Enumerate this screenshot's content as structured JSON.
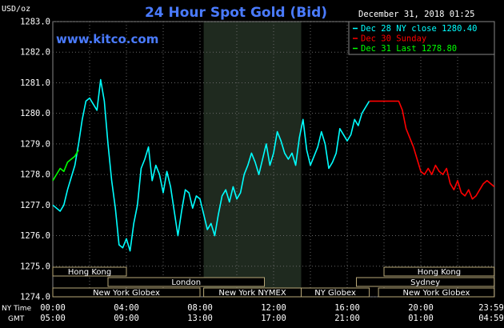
{
  "header": {
    "title": "24 Hour Spot Gold (Bid)",
    "unit": "USD/oz",
    "timestamp": "December 31, 2018 01:25",
    "website": "www.kitco.com"
  },
  "legend": [
    {
      "text": "Dec 28 NY close 1280.40",
      "color": "#00ffff"
    },
    {
      "text": "Dec 30 Sunday",
      "color": "#ff0000"
    },
    {
      "text": "Dec 31 Last 1278.80",
      "color": "#00ff00"
    }
  ],
  "axis_labels": {
    "ny_time": "NY Time",
    "gmt": "GMT"
  },
  "sessions": [
    {
      "label": "Hong Kong",
      "row": 0,
      "start": 0.0,
      "end": 4.0
    },
    {
      "label": "Hong Kong",
      "row": 0,
      "start": 18.0,
      "end": 23.99
    },
    {
      "label": "London",
      "row": 1,
      "start": 3.0,
      "end": 11.5
    },
    {
      "label": "Sydney",
      "row": 1,
      "start": 16.5,
      "end": 23.99
    },
    {
      "label": "New York Globex",
      "row": 2,
      "start": 0.0,
      "end": 8.0
    },
    {
      "label": "New York NYMEX",
      "row": 2,
      "start": 8.2,
      "end": 13.5
    },
    {
      "label": "NY Globex",
      "row": 2,
      "start": 13.5,
      "end": 17.2
    },
    {
      "label": "New York Globex",
      "row": 2,
      "start": 17.7,
      "end": 23.99
    }
  ],
  "chart_data": {
    "type": "line",
    "title": "24 Hour Spot Gold (Bid)",
    "ylabel": "USD/oz",
    "xlim": [
      0,
      24
    ],
    "ylim": [
      1274.0,
      1283.0
    ],
    "y_ticks": [
      "1274.0",
      "1275.0",
      "1276.0",
      "1277.0",
      "1278.0",
      "1279.0",
      "1280.0",
      "1281.0",
      "1282.0",
      "1283.0"
    ],
    "x_ticks_ny": [
      "00:00",
      "04:00",
      "08:00",
      "12:00",
      "16:00",
      "20:00",
      "23:59"
    ],
    "x_ticks_gmt": [
      "05:00",
      "09:00",
      "13:00",
      "17:00",
      "21:00",
      "01:00",
      "04:59"
    ],
    "x_tick_hours": [
      0,
      4,
      8,
      12,
      16,
      20,
      23.99
    ],
    "highlight_band": [
      8.2,
      13.5
    ],
    "grid": true,
    "series": [
      {
        "name": "Dec 28 NY close 1280.40",
        "color": "#00ffff",
        "x": [
          0.0,
          0.2,
          0.4,
          0.6,
          0.8,
          1.0,
          1.2,
          1.4,
          1.6,
          1.8,
          2.0,
          2.2,
          2.4,
          2.6,
          2.8,
          3.0,
          3.2,
          3.4,
          3.6,
          3.8,
          4.0,
          4.2,
          4.4,
          4.6,
          4.8,
          5.0,
          5.2,
          5.4,
          5.6,
          5.8,
          6.0,
          6.2,
          6.4,
          6.6,
          6.8,
          7.0,
          7.2,
          7.4,
          7.6,
          7.8,
          8.0,
          8.2,
          8.4,
          8.6,
          8.8,
          9.0,
          9.2,
          9.4,
          9.6,
          9.8,
          10.0,
          10.2,
          10.4,
          10.6,
          10.8,
          11.0,
          11.2,
          11.4,
          11.6,
          11.8,
          12.0,
          12.2,
          12.4,
          12.6,
          12.8,
          13.0,
          13.2,
          13.4,
          13.6,
          13.8,
          14.0,
          14.2,
          14.4,
          14.6,
          14.8,
          15.0,
          15.2,
          15.4,
          15.6,
          15.8,
          16.0,
          16.2,
          16.4,
          16.6,
          16.8,
          17.0,
          17.2
        ],
        "values": [
          1277.0,
          1276.9,
          1276.8,
          1277.0,
          1277.5,
          1277.9,
          1278.3,
          1279.0,
          1279.8,
          1280.4,
          1280.5,
          1280.3,
          1280.1,
          1281.1,
          1280.4,
          1279.0,
          1277.8,
          1276.9,
          1275.7,
          1275.6,
          1275.9,
          1275.5,
          1276.4,
          1277.0,
          1278.2,
          1278.5,
          1278.9,
          1277.8,
          1278.3,
          1278.0,
          1277.4,
          1278.1,
          1277.6,
          1276.8,
          1276.0,
          1276.8,
          1277.5,
          1277.4,
          1276.9,
          1277.3,
          1277.2,
          1276.7,
          1276.2,
          1276.4,
          1276.0,
          1276.7,
          1277.3,
          1277.5,
          1277.1,
          1277.6,
          1277.2,
          1277.4,
          1278.0,
          1278.3,
          1278.7,
          1278.4,
          1278.0,
          1278.5,
          1279.0,
          1278.3,
          1278.7,
          1279.4,
          1279.1,
          1278.7,
          1278.5,
          1278.7,
          1278.3,
          1279.2,
          1279.8,
          1278.8,
          1278.3,
          1278.6,
          1278.9,
          1279.4,
          1279.0,
          1278.2,
          1278.4,
          1278.7,
          1279.5,
          1279.3,
          1279.1,
          1279.3,
          1279.8,
          1279.6,
          1280.0,
          1280.2,
          1280.4
        ]
      },
      {
        "name": "Dec 30 Sunday",
        "color": "#ff0000",
        "x": [
          17.2,
          17.6,
          18.0,
          18.4,
          18.8,
          19.0,
          19.2,
          19.4,
          19.6,
          19.8,
          20.0,
          20.2,
          20.4,
          20.6,
          20.8,
          21.0,
          21.2,
          21.4,
          21.6,
          21.8,
          22.0,
          22.2,
          22.4,
          22.6,
          22.8,
          23.0,
          23.2,
          23.4,
          23.6,
          23.8,
          23.99
        ],
        "values": [
          1280.4,
          1280.4,
          1280.4,
          1280.4,
          1280.4,
          1280.1,
          1279.5,
          1279.2,
          1278.9,
          1278.5,
          1278.1,
          1278.0,
          1278.2,
          1278.0,
          1278.3,
          1278.1,
          1278.0,
          1278.2,
          1277.7,
          1277.5,
          1277.8,
          1277.4,
          1277.3,
          1277.5,
          1277.2,
          1277.3,
          1277.5,
          1277.7,
          1277.8,
          1277.7,
          1277.6
        ]
      },
      {
        "name": "Dec 31 Last 1278.80",
        "color": "#00ff00",
        "x": [
          0.0,
          0.2,
          0.4,
          0.6,
          0.8,
          1.0,
          1.2,
          1.4
        ],
        "values": [
          1277.8,
          1278.0,
          1278.2,
          1278.1,
          1278.4,
          1278.5,
          1278.6,
          1278.8
        ]
      }
    ]
  }
}
